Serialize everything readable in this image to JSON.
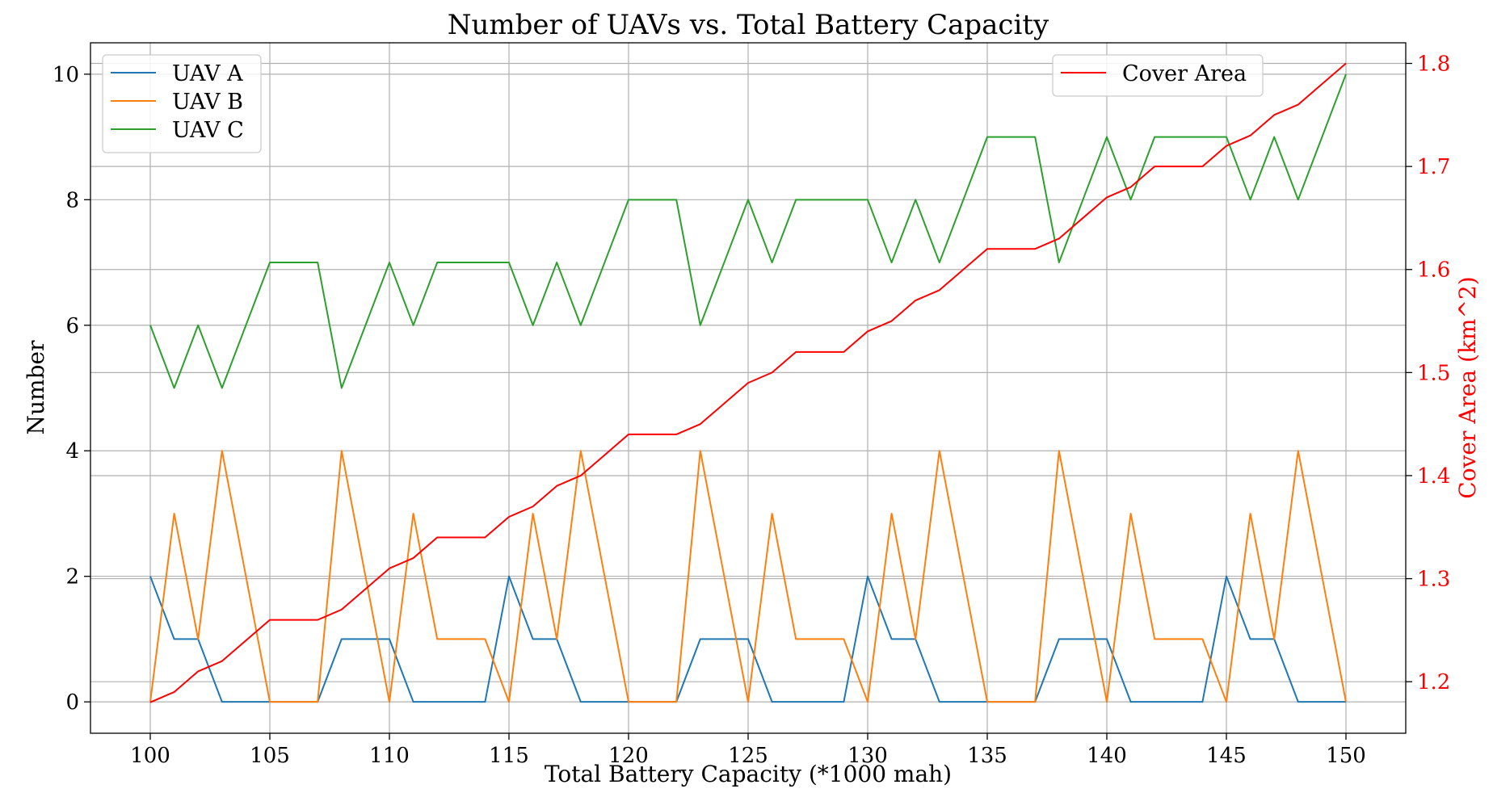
{
  "chart_data": {
    "type": "line",
    "title": "Number of UAVs vs. Total Battery Capacity",
    "xlabel": "Total Battery Capacity (*1000 mah)",
    "ylabel": "Number",
    "ylabel_right": "Cover Area (km^2)",
    "xlim": [
      97.5,
      152.5
    ],
    "ylim": [
      -0.5,
      10.5
    ],
    "ylim_right": [
      1.15,
      1.82
    ],
    "x_ticks": [
      100,
      105,
      110,
      115,
      120,
      125,
      130,
      135,
      140,
      145,
      150
    ],
    "y_ticks": [
      0,
      2,
      4,
      6,
      8,
      10
    ],
    "y_ticks_right": [
      1.2,
      1.3,
      1.4,
      1.5,
      1.6,
      1.7,
      1.8
    ],
    "grid": true,
    "x": [
      100,
      101,
      102,
      103,
      104,
      105,
      106,
      107,
      108,
      109,
      110,
      111,
      112,
      113,
      114,
      115,
      116,
      117,
      118,
      119,
      120,
      121,
      122,
      123,
      124,
      125,
      126,
      127,
      128,
      129,
      130,
      131,
      132,
      133,
      134,
      135,
      136,
      137,
      138,
      139,
      140,
      141,
      142,
      143,
      144,
      145,
      146,
      147,
      148,
      149,
      150
    ],
    "series": [
      {
        "name": "UAV A",
        "axis": "left",
        "color": "#1f77b4",
        "legend": "left",
        "values": [
          2,
          1,
          1,
          0,
          0,
          0,
          0,
          0,
          1,
          1,
          1,
          0,
          0,
          0,
          0,
          2,
          1,
          1,
          0,
          0,
          0,
          0,
          0,
          1,
          1,
          1,
          0,
          0,
          0,
          0,
          2,
          1,
          1,
          0,
          0,
          0,
          0,
          0,
          1,
          1,
          1,
          0,
          0,
          0,
          0,
          2,
          1,
          1,
          0,
          0,
          0
        ]
      },
      {
        "name": "UAV B",
        "axis": "left",
        "color": "#ff7f0e",
        "legend": "left",
        "values": [
          0,
          3,
          1,
          4,
          2,
          0,
          0,
          0,
          4,
          2,
          0,
          3,
          1,
          1,
          1,
          0,
          3,
          1,
          4,
          2,
          0,
          0,
          0,
          4,
          2,
          0,
          3,
          1,
          1,
          1,
          0,
          3,
          1,
          4,
          2,
          0,
          0,
          0,
          4,
          2,
          0,
          3,
          1,
          1,
          1,
          0,
          3,
          1,
          4,
          2,
          0
        ]
      },
      {
        "name": "UAV C",
        "axis": "left",
        "color": "#2ca02c",
        "legend": "left",
        "values": [
          6,
          5,
          6,
          5,
          6,
          7,
          7,
          7,
          5,
          6,
          7,
          6,
          7,
          7,
          7,
          7,
          6,
          7,
          6,
          7,
          8,
          8,
          8,
          6,
          7,
          8,
          7,
          8,
          8,
          8,
          8,
          7,
          8,
          7,
          8,
          9,
          9,
          9,
          7,
          8,
          9,
          8,
          9,
          9,
          9,
          9,
          8,
          9,
          8,
          9,
          10
        ]
      },
      {
        "name": "Cover Area",
        "axis": "right",
        "color": "#ff0000",
        "legend": "right",
        "values": [
          1.18,
          1.19,
          1.21,
          1.22,
          1.24,
          1.26,
          1.26,
          1.26,
          1.27,
          1.29,
          1.31,
          1.32,
          1.34,
          1.34,
          1.34,
          1.36,
          1.37,
          1.39,
          1.4,
          1.42,
          1.44,
          1.44,
          1.44,
          1.45,
          1.47,
          1.49,
          1.5,
          1.52,
          1.52,
          1.52,
          1.54,
          1.55,
          1.57,
          1.58,
          1.6,
          1.62,
          1.62,
          1.62,
          1.63,
          1.65,
          1.67,
          1.68,
          1.7,
          1.7,
          1.7,
          1.72,
          1.73,
          1.75,
          1.76,
          1.78,
          1.8
        ]
      }
    ]
  }
}
